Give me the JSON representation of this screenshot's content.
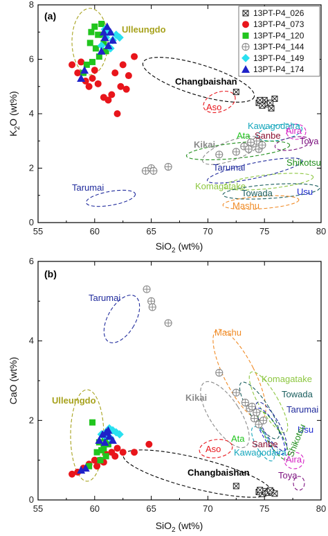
{
  "chart_data": [
    {
      "panel": "(a)",
      "type": "scatter",
      "xlabel": "SiO2 (wt%)",
      "ylabel": "K2O (wt%)",
      "xlim": [
        55,
        80
      ],
      "ylim": [
        0,
        8
      ],
      "xticks": [
        55,
        60,
        65,
        70,
        75,
        80
      ],
      "yticks": [
        0,
        2,
        4,
        6,
        8
      ],
      "legend_position": "top-right",
      "series": [
        {
          "name": "13PT-P4_026",
          "marker": "boxx",
          "color": "#222222",
          "points": [
            [
              72.5,
              4.8
            ],
            [
              74.5,
              4.4
            ],
            [
              74.8,
              4.3
            ],
            [
              75.0,
              4.5
            ],
            [
              75.3,
              4.35
            ],
            [
              75.6,
              4.2
            ],
            [
              75.9,
              4.55
            ],
            [
              75.5,
              4.4
            ],
            [
              74.6,
              4.5
            ]
          ]
        },
        {
          "name": "13PT-P4_073",
          "marker": "circle",
          "color": "#e8151b",
          "points": [
            [
              58.0,
              5.8
            ],
            [
              58.5,
              5.5
            ],
            [
              58.8,
              5.9
            ],
            [
              59.2,
              5.2
            ],
            [
              59.5,
              5.0
            ],
            [
              59.8,
              5.3
            ],
            [
              60.0,
              5.6
            ],
            [
              60.3,
              5.1
            ],
            [
              60.8,
              4.6
            ],
            [
              61.2,
              4.5
            ],
            [
              61.5,
              4.7
            ],
            [
              62.0,
              4.0
            ],
            [
              62.3,
              5.0
            ],
            [
              62.8,
              4.9
            ],
            [
              63.0,
              5.4
            ],
            [
              63.5,
              6.1
            ],
            [
              62.5,
              5.8
            ],
            [
              61.8,
              5.5
            ]
          ]
        },
        {
          "name": "13PT-P4_120",
          "marker": "square",
          "color": "#21c51e",
          "points": [
            [
              59.0,
              5.5
            ],
            [
              59.3,
              5.8
            ],
            [
              59.6,
              6.6
            ],
            [
              60.0,
              7.2
            ],
            [
              60.3,
              6.9
            ],
            [
              60.6,
              7.3
            ],
            [
              60.8,
              6.6
            ],
            [
              61.0,
              6.3
            ],
            [
              60.4,
              6.1
            ],
            [
              60.1,
              6.4
            ],
            [
              59.8,
              5.9
            ],
            [
              60.7,
              6.9
            ],
            [
              59.7,
              7.0
            ]
          ]
        },
        {
          "name": "13PT-P4_144",
          "marker": "circleplus",
          "color": "#888888",
          "points": [
            [
              64.5,
              1.9
            ],
            [
              65.0,
              2.0
            ],
            [
              65.2,
              1.9
            ],
            [
              66.5,
              2.05
            ],
            [
              71.0,
              2.5
            ],
            [
              72.5,
              2.6
            ],
            [
              73.2,
              2.8
            ],
            [
              73.6,
              2.7
            ],
            [
              74.0,
              2.9
            ],
            [
              74.3,
              3.0
            ],
            [
              74.5,
              2.7
            ],
            [
              74.8,
              2.85
            ],
            [
              73.8,
              2.95
            ]
          ]
        },
        {
          "name": "13PT-P4_149",
          "marker": "diamond",
          "color": "#29e0f0",
          "points": [
            [
              60.6,
              6.5
            ],
            [
              61.0,
              6.8
            ],
            [
              61.3,
              7.0
            ],
            [
              61.6,
              6.7
            ],
            [
              61.9,
              6.9
            ],
            [
              62.2,
              6.8
            ],
            [
              61.4,
              6.4
            ],
            [
              60.9,
              7.1
            ]
          ]
        },
        {
          "name": "13PT-P4_174",
          "marker": "triangle",
          "color": "#1f22c8",
          "points": [
            [
              58.8,
              5.3
            ],
            [
              59.1,
              5.6
            ],
            [
              60.6,
              6.3
            ],
            [
              60.9,
              6.8
            ],
            [
              61.1,
              7.2
            ],
            [
              61.4,
              7.0
            ],
            [
              61.6,
              6.7
            ],
            [
              60.8,
              7.0
            ],
            [
              61.2,
              6.5
            ]
          ]
        }
      ],
      "annotations": [
        {
          "text": "Ulleungdo",
          "color": "#a7a21d"
        },
        {
          "text": "Changbaishan",
          "color": "#000000"
        },
        {
          "text": "Aso",
          "color": "#e8151b"
        },
        {
          "text": "Kawagodaira",
          "color": "#14a6bc"
        },
        {
          "text": "Aira",
          "color": "#d51fc4"
        },
        {
          "text": "Toya",
          "color": "#7b0f7e"
        },
        {
          "text": "Ata",
          "color": "#21c51e"
        },
        {
          "text": "Sanbe",
          "color": "#8a1030"
        },
        {
          "text": "Kikai",
          "color": "#8a8a8a"
        },
        {
          "text": "Shikotsu",
          "color": "#1f8e1a"
        },
        {
          "text": "Tarumai",
          "color": "#1f2a9c"
        },
        {
          "text": "Tarumai",
          "color": "#1f2a9c"
        },
        {
          "text": "Komagatake",
          "color": "#8cc63f"
        },
        {
          "text": "Towada",
          "color": "#1a5e5e"
        },
        {
          "text": "Usu",
          "color": "#1f2ad1"
        },
        {
          "text": "Mashu",
          "color": "#f08a24"
        }
      ]
    },
    {
      "panel": "(b)",
      "type": "scatter",
      "xlabel": "SiO2 (wt%)",
      "ylabel": "CaO (wt%)",
      "xlim": [
        55,
        80
      ],
      "ylim": [
        0,
        6
      ],
      "xticks": [
        55,
        60,
        65,
        70,
        75,
        80
      ],
      "yticks": [
        0,
        2,
        4,
        6
      ],
      "series": [
        {
          "name": "13PT-P4_026",
          "marker": "boxx",
          "color": "#222222",
          "points": [
            [
              72.5,
              0.35
            ],
            [
              74.5,
              0.2
            ],
            [
              74.8,
              0.15
            ],
            [
              75.0,
              0.22
            ],
            [
              75.3,
              0.18
            ],
            [
              75.6,
              0.2
            ],
            [
              75.9,
              0.16
            ],
            [
              75.5,
              0.24
            ],
            [
              74.6,
              0.25
            ]
          ]
        },
        {
          "name": "13PT-P4_073",
          "marker": "circle",
          "color": "#e8151b",
          "points": [
            [
              58.0,
              0.65
            ],
            [
              58.5,
              0.7
            ],
            [
              59.0,
              0.8
            ],
            [
              59.5,
              0.9
            ],
            [
              60.0,
              1.0
            ],
            [
              60.2,
              0.85
            ],
            [
              60.5,
              1.0
            ],
            [
              61.0,
              1.15
            ],
            [
              61.5,
              1.2
            ],
            [
              62.0,
              1.3
            ],
            [
              62.5,
              1.2
            ],
            [
              63.5,
              1.2
            ],
            [
              64.8,
              1.4
            ],
            [
              61.8,
              1.1
            ],
            [
              60.8,
              0.95
            ]
          ]
        },
        {
          "name": "13PT-P4_120",
          "marker": "square",
          "color": "#21c51e",
          "points": [
            [
              59.8,
              1.95
            ],
            [
              60.2,
              1.2
            ],
            [
              60.5,
              1.0
            ],
            [
              60.8,
              1.3
            ],
            [
              61.0,
              1.1
            ],
            [
              60.4,
              1.45
            ],
            [
              60.9,
              1.55
            ],
            [
              61.2,
              1.4
            ],
            [
              60.6,
              1.25
            ],
            [
              59.5,
              0.85
            ]
          ]
        },
        {
          "name": "13PT-P4_144",
          "marker": "circleplus",
          "color": "#888888",
          "points": [
            [
              64.6,
              5.3
            ],
            [
              65.0,
              5.0
            ],
            [
              65.1,
              4.85
            ],
            [
              66.5,
              4.45
            ],
            [
              71.0,
              3.2
            ],
            [
              72.5,
              2.7
            ],
            [
              73.3,
              2.45
            ],
            [
              73.7,
              2.3
            ],
            [
              74.1,
              2.05
            ],
            [
              74.3,
              2.2
            ],
            [
              74.5,
              1.9
            ],
            [
              74.9,
              2.0
            ],
            [
              73.9,
              2.35
            ]
          ]
        },
        {
          "name": "13PT-P4_149",
          "marker": "diamond",
          "color": "#29e0f0",
          "points": [
            [
              60.6,
              1.65
            ],
            [
              61.0,
              1.7
            ],
            [
              61.3,
              1.8
            ],
            [
              61.6,
              1.75
            ],
            [
              61.9,
              1.7
            ],
            [
              62.2,
              1.65
            ],
            [
              61.4,
              1.55
            ],
            [
              60.9,
              1.6
            ]
          ]
        },
        {
          "name": "13PT-P4_174",
          "marker": "triangle",
          "color": "#1f22c8",
          "points": [
            [
              58.8,
              0.75
            ],
            [
              59.2,
              0.8
            ],
            [
              60.4,
              1.5
            ],
            [
              60.7,
              1.65
            ],
            [
              61.0,
              1.7
            ],
            [
              61.3,
              1.6
            ],
            [
              61.6,
              1.5
            ],
            [
              60.9,
              1.45
            ],
            [
              61.2,
              1.75
            ]
          ]
        }
      ],
      "annotations": [
        {
          "text": "Tarumai",
          "color": "#1f2a9c"
        },
        {
          "text": "Mashu",
          "color": "#f08a24"
        },
        {
          "text": "Komagatake",
          "color": "#8cc63f"
        },
        {
          "text": "Kikai",
          "color": "#8a8a8a"
        },
        {
          "text": "Towada",
          "color": "#1a5e5e"
        },
        {
          "text": "Tarumai",
          "color": "#1f2a9c"
        },
        {
          "text": "Usu",
          "color": "#1f2ad1"
        },
        {
          "text": "Ulleungdo",
          "color": "#a7a21d"
        },
        {
          "text": "Ata",
          "color": "#21c51e"
        },
        {
          "text": "Sanbe",
          "color": "#8a1030"
        },
        {
          "text": "Shikotsu",
          "color": "#1f8e1a"
        },
        {
          "text": "Aso",
          "color": "#e8151b"
        },
        {
          "text": "Kawagodaira",
          "color": "#14a6bc"
        },
        {
          "text": "Aira",
          "color": "#d51fc4"
        },
        {
          "text": "Changbaishan",
          "color": "#000000"
        },
        {
          "text": "Toya",
          "color": "#7b0f7e"
        }
      ]
    }
  ]
}
